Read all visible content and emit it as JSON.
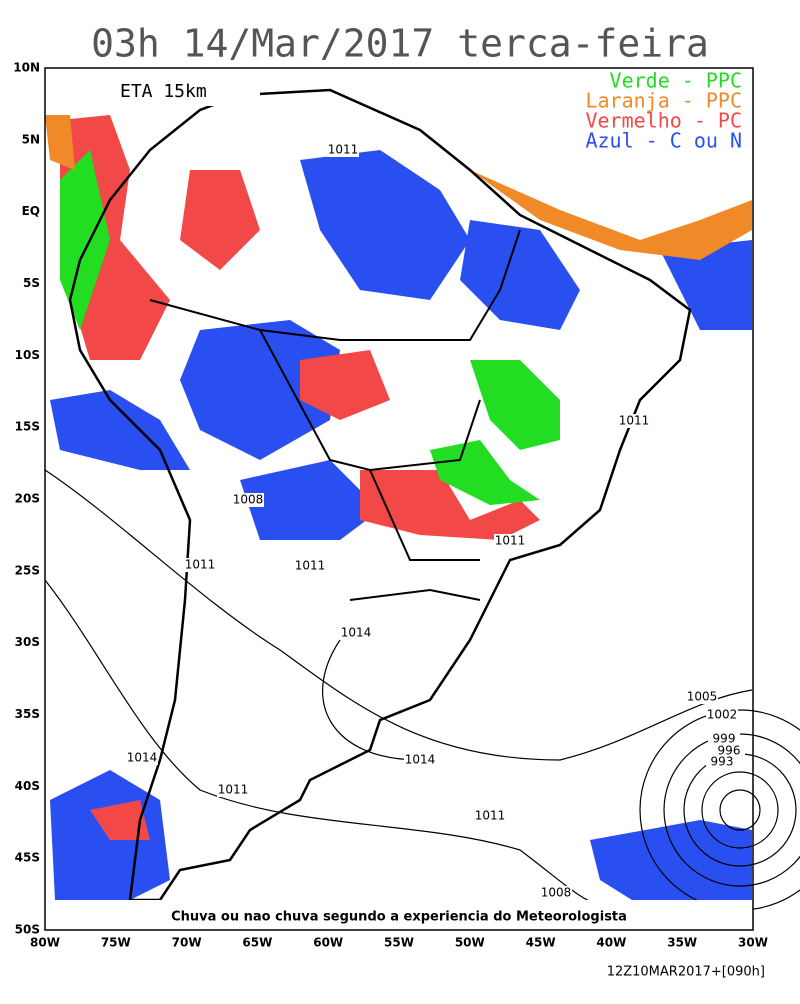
{
  "header": {
    "title": "03h 14/Mar/2017 terca-feira"
  },
  "model": "ETA 15km",
  "legend": [
    {
      "label": "Verde - PPC",
      "color": "#22dd22"
    },
    {
      "label": "Laranja - PPC",
      "color": "#f08a28"
    },
    {
      "label": "Vermelho - PC",
      "color": "#f24848"
    },
    {
      "label": "Azul - C ou N",
      "color": "#2a4ff0"
    }
  ],
  "lat_labels": [
    "10N",
    "5N",
    "EQ",
    "5S",
    "10S",
    "15S",
    "20S",
    "25S",
    "30S",
    "35S",
    "40S",
    "45S",
    "50S"
  ],
  "lon_labels": [
    "80W",
    "75W",
    "70W",
    "65W",
    "60W",
    "55W",
    "50W",
    "45W",
    "40W",
    "35W",
    "30W"
  ],
  "isobar_labels": [
    "1011",
    "1011",
    "1008",
    "1011",
    "1011",
    "1011",
    "1014",
    "1005",
    "1002",
    "999",
    "996",
    "993",
    "1014",
    "1014",
    "1011",
    "1011",
    "1008"
  ],
  "caption": "Chuva ou nao chuva segundo a experiencia do Meteorologista",
  "run": "12Z10MAR2017+[090h]"
}
